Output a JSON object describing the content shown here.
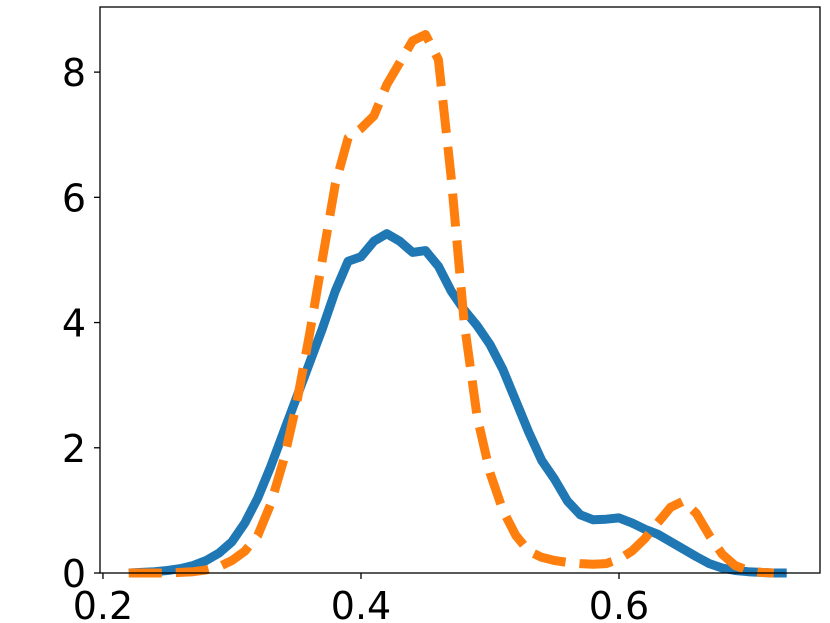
{
  "chart_data": {
    "type": "line",
    "x": [
      0.22,
      0.23,
      0.24,
      0.25,
      0.26,
      0.27,
      0.28,
      0.29,
      0.3,
      0.31,
      0.32,
      0.33,
      0.34,
      0.35,
      0.36,
      0.37,
      0.38,
      0.39,
      0.4,
      0.41,
      0.42,
      0.43,
      0.44,
      0.45,
      0.46,
      0.47,
      0.48,
      0.49,
      0.5,
      0.51,
      0.52,
      0.53,
      0.54,
      0.55,
      0.56,
      0.57,
      0.58,
      0.59,
      0.6,
      0.61,
      0.62,
      0.63,
      0.64,
      0.65,
      0.66,
      0.67,
      0.68,
      0.69,
      0.7,
      0.71,
      0.72,
      0.73
    ],
    "series": [
      {
        "color": "#1f77b4",
        "style": "solid",
        "values": [
          0,
          0.01,
          0.02,
          0.04,
          0.07,
          0.12,
          0.2,
          0.32,
          0.5,
          0.8,
          1.2,
          1.7,
          2.25,
          2.8,
          3.35,
          3.9,
          4.5,
          4.98,
          5.05,
          5.3,
          5.42,
          5.3,
          5.12,
          5.15,
          4.9,
          4.5,
          4.2,
          3.95,
          3.65,
          3.25,
          2.75,
          2.25,
          1.8,
          1.5,
          1.15,
          0.93,
          0.85,
          0.86,
          0.88,
          0.8,
          0.7,
          0.62,
          0.5,
          0.38,
          0.26,
          0.15,
          0.08,
          0.04,
          0.02,
          0.01,
          0,
          0
        ]
      },
      {
        "color": "#ff7f0e",
        "style": "dashed",
        "values": [
          0,
          0,
          0,
          0,
          0.01,
          0.02,
          0.05,
          0.1,
          0.2,
          0.35,
          0.6,
          1.1,
          1.8,
          2.7,
          3.8,
          5.0,
          6.2,
          6.95,
          7.1,
          7.3,
          7.8,
          8.15,
          8.5,
          8.6,
          8.2,
          6.3,
          4.0,
          2.5,
          1.6,
          1.0,
          0.6,
          0.35,
          0.25,
          0.2,
          0.17,
          0.15,
          0.14,
          0.15,
          0.22,
          0.35,
          0.55,
          0.8,
          1.05,
          1.15,
          0.95,
          0.6,
          0.3,
          0.12,
          0.04,
          0.01,
          0,
          null
        ]
      }
    ],
    "xlim": [
      0.1977,
      0.7558
    ],
    "xticks": [
      0.2,
      0.4,
      0.6
    ],
    "ylim": [
      0,
      9.04
    ],
    "yticks": [
      0,
      2,
      4,
      6,
      8
    ],
    "grid": false
  }
}
